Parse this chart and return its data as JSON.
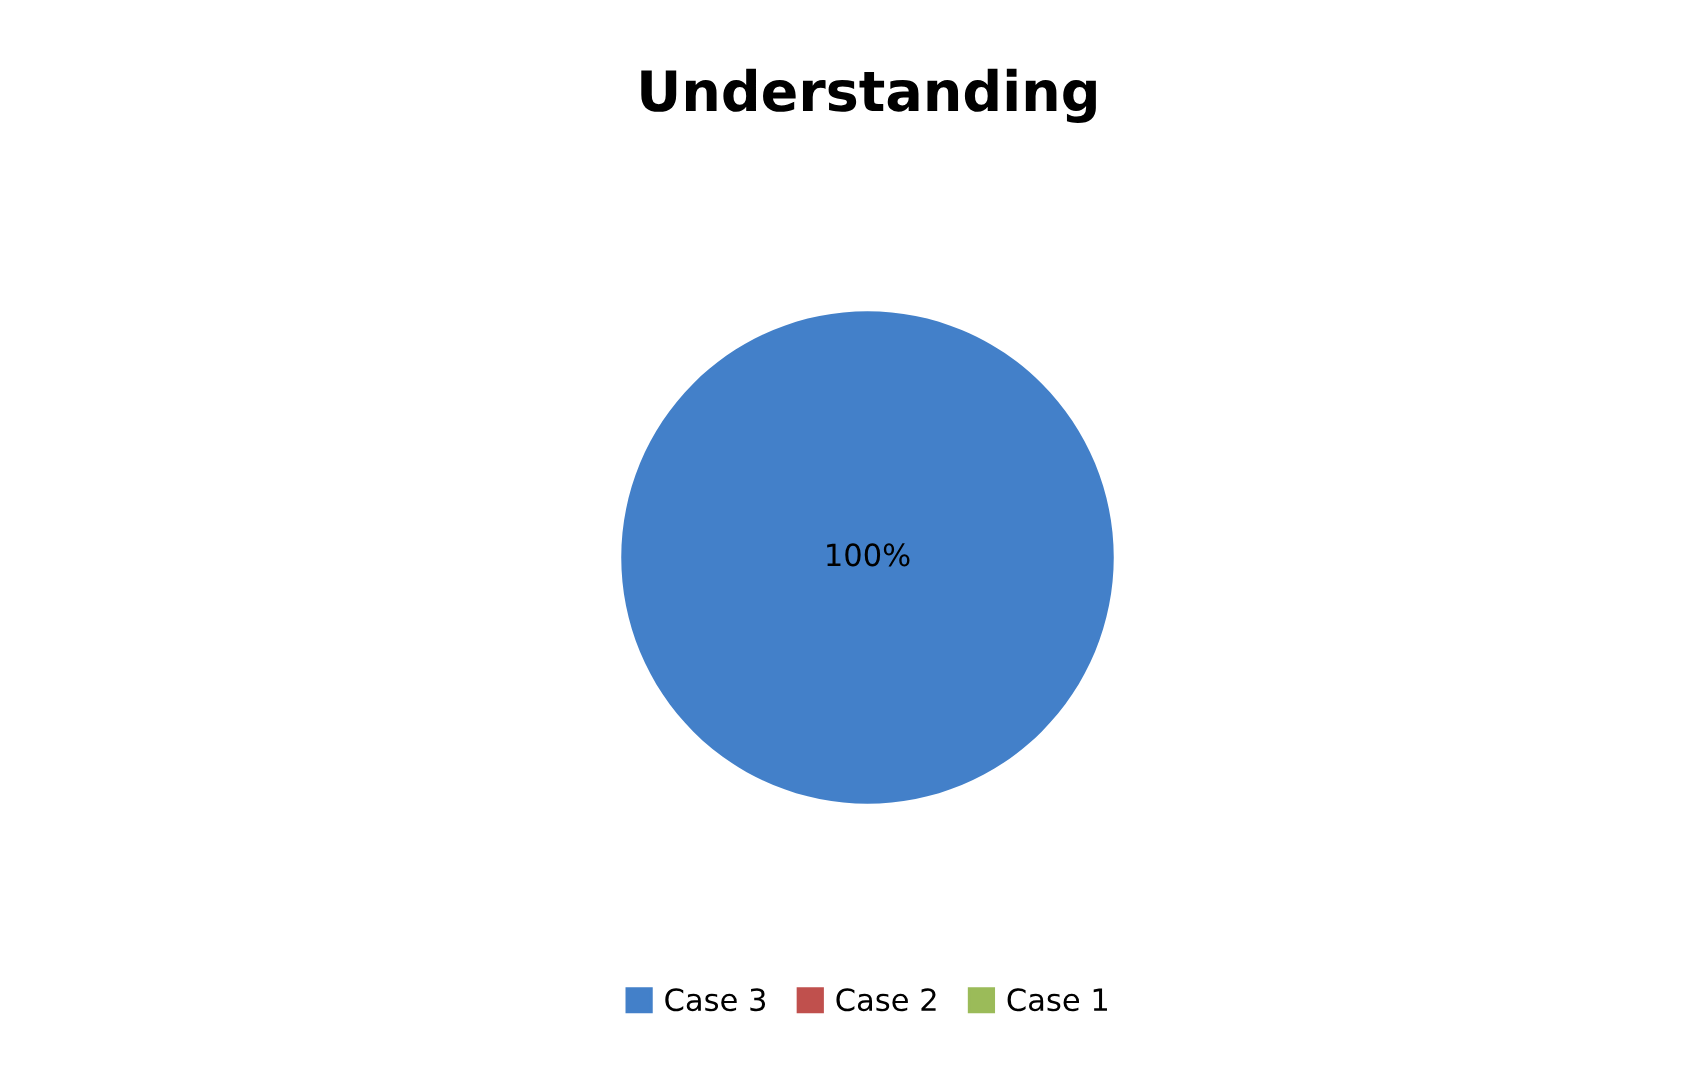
{
  "chart_data": {
    "type": "pie",
    "title": "Understanding",
    "categories": [
      "Case 3",
      "Case 2",
      "Case 1"
    ],
    "values": [
      100,
      0,
      0
    ],
    "colors": [
      "#4380c9",
      "#c0504d",
      "#9bbb59"
    ],
    "value_labels": [
      "100%",
      null,
      null
    ],
    "legend": "bottom"
  }
}
